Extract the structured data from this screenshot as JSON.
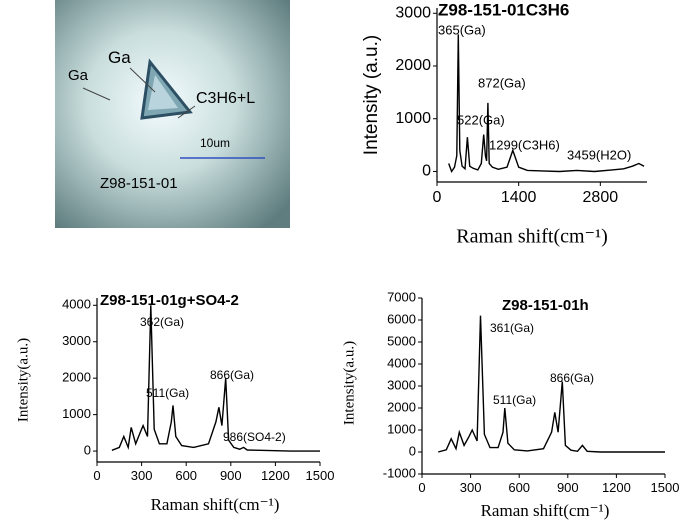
{
  "micrograph": {
    "labels": [
      "Ga",
      "Ga",
      "C3H6+L",
      "10um",
      "Z98-151-01"
    ]
  },
  "chart_data": [
    {
      "type": "line",
      "title": "Z98-151-01C3H6",
      "x_label": "Raman shift(cm⁻¹)",
      "y_label": "Intensity (a.u.)",
      "annotations": [
        "365(Ga)",
        "872(Ga)",
        "522(Ga)",
        "1299(C3H6)",
        "3459(H2O)"
      ],
      "x": [
        200,
        250,
        300,
        340,
        365,
        390,
        430,
        480,
        522,
        560,
        620,
        700,
        760,
        800,
        830,
        850,
        872,
        895,
        950,
        1050,
        1200,
        1299,
        1400,
        1550,
        1800,
        2100,
        2400,
        2700,
        3000,
        3200,
        3350,
        3459,
        3550
      ],
      "series": [
        {
          "color": "#000000",
          "values": [
            150,
            0,
            80,
            300,
            2600,
            400,
            100,
            50,
            650,
            100,
            60,
            30,
            150,
            700,
            300,
            200,
            1300,
            150,
            80,
            40,
            80,
            400,
            80,
            20,
            10,
            0,
            20,
            0,
            30,
            50,
            100,
            150,
            100
          ]
        }
      ],
      "xlim": [
        0,
        3600
      ],
      "xticks": [
        0,
        1400,
        2800
      ],
      "ylim": [
        -200,
        3100
      ],
      "yticks": [
        0,
        1000,
        2000,
        3000
      ]
    },
    {
      "type": "line",
      "title": "Z98-151-01g+SO4-2",
      "x_label": "Raman shift(cm⁻¹)",
      "y_label": "Intensity(a.u.)",
      "annotations": [
        "362(Ga)",
        "511(Ga)",
        "866(Ga)",
        "986(SO4-2)"
      ],
      "x": [
        100,
        150,
        180,
        210,
        230,
        260,
        290,
        310,
        340,
        362,
        385,
        420,
        470,
        500,
        511,
        530,
        570,
        650,
        750,
        800,
        820,
        840,
        866,
        885,
        920,
        960,
        986,
        1010,
        1100,
        1300,
        1500
      ],
      "series": [
        {
          "color": "#000000",
          "values": [
            20,
            100,
            400,
            100,
            650,
            200,
            500,
            700,
            400,
            4000,
            600,
            200,
            200,
            800,
            1250,
            400,
            150,
            100,
            200,
            800,
            1200,
            700,
            2000,
            300,
            100,
            50,
            100,
            30,
            20,
            0,
            0
          ]
        }
      ],
      "xlim": [
        0,
        1500
      ],
      "xticks": [
        0,
        300,
        600,
        900,
        1200,
        1500
      ],
      "ylim": [
        -300,
        4200
      ],
      "yticks": [
        0,
        1000,
        2000,
        3000,
        4000
      ]
    },
    {
      "type": "line",
      "title": "Z98-151-01h",
      "x_label": "Raman shift(cm⁻¹)",
      "y_label": "Intensity(a.u.)",
      "annotations": [
        "361(Ga)",
        "511(Ga)",
        "866(Ga)"
      ],
      "x": [
        100,
        150,
        180,
        210,
        230,
        260,
        290,
        310,
        340,
        361,
        385,
        420,
        470,
        500,
        511,
        530,
        570,
        650,
        750,
        800,
        820,
        840,
        866,
        885,
        920,
        960,
        990,
        1020,
        1100,
        1300,
        1500
      ],
      "series": [
        {
          "color": "#000000",
          "values": [
            0,
            100,
            600,
            150,
            900,
            300,
            700,
            1000,
            500,
            6200,
            800,
            200,
            200,
            900,
            2000,
            400,
            100,
            50,
            150,
            900,
            1800,
            900,
            3200,
            300,
            80,
            30,
            300,
            30,
            0,
            0,
            0
          ]
        }
      ],
      "xlim": [
        0,
        1500
      ],
      "xticks": [
        0,
        300,
        600,
        900,
        1200,
        1500
      ],
      "ylim": [
        -1000,
        7000
      ],
      "yticks": [
        -1000,
        0,
        1000,
        2000,
        3000,
        4000,
        5000,
        6000,
        7000
      ]
    }
  ]
}
